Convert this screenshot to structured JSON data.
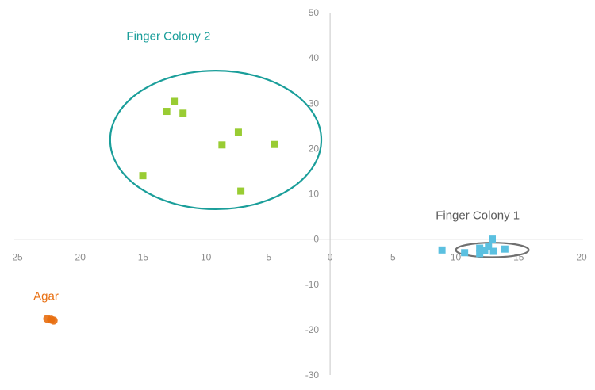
{
  "chart_data": {
    "type": "scatter",
    "title": "",
    "xlabel": "",
    "ylabel": "",
    "xlim": [
      -25,
      20
    ],
    "ylim": [
      -30,
      50
    ],
    "x_ticks": [
      -25,
      -20,
      -15,
      -10,
      -5,
      0,
      5,
      10,
      15,
      20
    ],
    "y_ticks": [
      -30,
      -20,
      -10,
      0,
      10,
      20,
      30,
      40,
      50
    ],
    "grid": false,
    "series": [
      {
        "name": "Finger Colony 2",
        "color": "#99cc33",
        "marker": "square",
        "points": [
          {
            "x": -12.4,
            "y": 30.4
          },
          {
            "x": -13.0,
            "y": 28.2
          },
          {
            "x": -11.7,
            "y": 27.8
          },
          {
            "x": -7.3,
            "y": 23.6
          },
          {
            "x": -8.6,
            "y": 20.8
          },
          {
            "x": -4.4,
            "y": 20.9
          },
          {
            "x": -14.9,
            "y": 14.0
          },
          {
            "x": -7.1,
            "y": 10.6
          }
        ],
        "enclosure": {
          "shape": "ellipse",
          "color": "#1a9e9a",
          "center": [
            -9.1,
            21.9
          ],
          "radius": [
            8.4,
            15.3
          ]
        }
      },
      {
        "name": "Finger Colony 1",
        "color": "#5bc0e0",
        "marker": "square",
        "points": [
          {
            "x": 8.9,
            "y": -2.4
          },
          {
            "x": 10.7,
            "y": -3.0
          },
          {
            "x": 11.9,
            "y": -2.0
          },
          {
            "x": 11.9,
            "y": -3.2
          },
          {
            "x": 12.3,
            "y": -2.6
          },
          {
            "x": 12.6,
            "y": -1.7
          },
          {
            "x": 12.9,
            "y": 0.0
          },
          {
            "x": 13.0,
            "y": -2.7
          },
          {
            "x": 13.9,
            "y": -2.2
          }
        ],
        "enclosure": {
          "shape": "ellipse",
          "color": "#707070",
          "center": [
            12.9,
            -2.4
          ],
          "radius": [
            2.9,
            1.6
          ]
        }
      },
      {
        "name": "Agar",
        "color": "#e86e0f",
        "marker": "circle",
        "points": [
          {
            "x": -22.5,
            "y": -17.6
          },
          {
            "x": -22.2,
            "y": -17.8
          },
          {
            "x": -22.0,
            "y": -18.0
          }
        ]
      }
    ],
    "labels": [
      {
        "text": "Finger Colony 2",
        "color": "#1a9e9a",
        "anchor": [
          -16.2,
          44.0
        ]
      },
      {
        "text": "Finger Colony 1",
        "color": "#5a5a5a",
        "anchor": [
          8.4,
          4.4
        ]
      },
      {
        "text": "Agar",
        "color": "#e86e0f",
        "anchor": [
          -23.6,
          -13.5
        ]
      }
    ]
  }
}
